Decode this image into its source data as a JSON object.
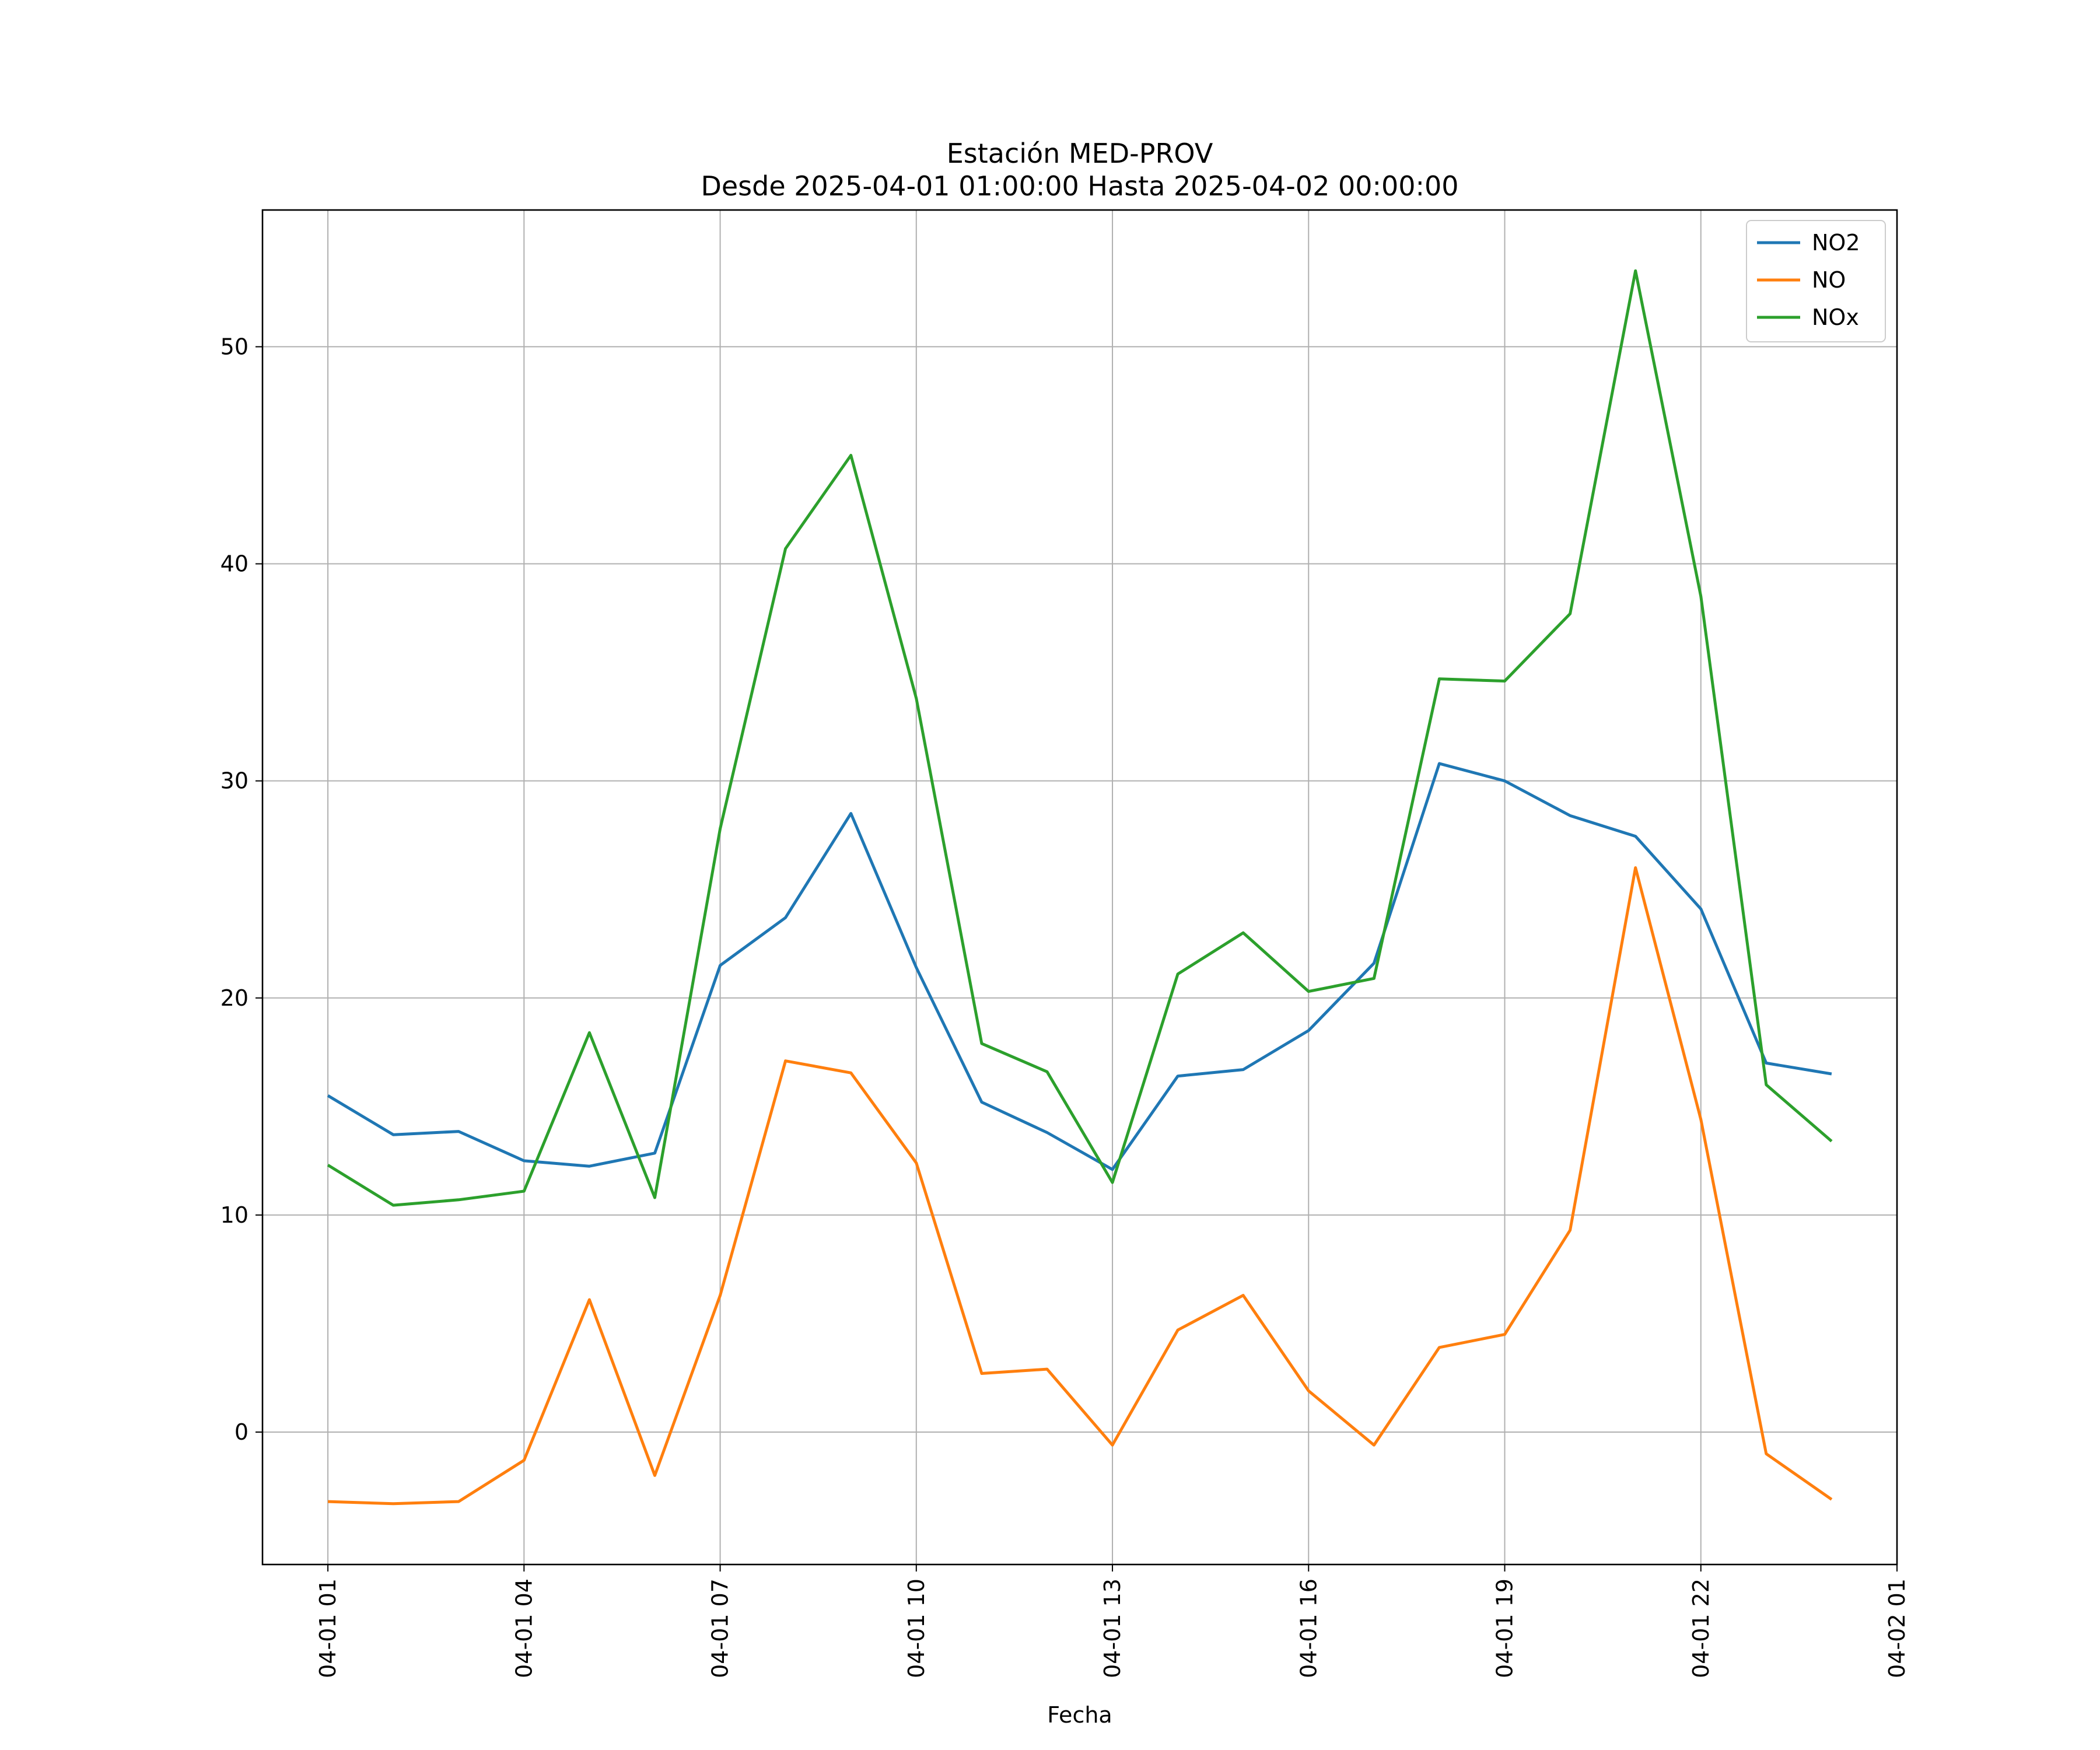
{
  "chart_data": {
    "type": "line",
    "title": "Estación MED-PROV",
    "subtitle": "Desde 2025-04-01 01:00:00 Hasta 2025-04-02 00:00:00",
    "xlabel": "Fecha",
    "ylabel": "",
    "x": [
      "2025-04-01 01:00",
      "2025-04-01 02:00",
      "2025-04-01 03:00",
      "2025-04-01 04:00",
      "2025-04-01 05:00",
      "2025-04-01 06:00",
      "2025-04-01 07:00",
      "2025-04-01 08:00",
      "2025-04-01 09:00",
      "2025-04-01 10:00",
      "2025-04-01 11:00",
      "2025-04-01 12:00",
      "2025-04-01 13:00",
      "2025-04-01 14:00",
      "2025-04-01 15:00",
      "2025-04-01 16:00",
      "2025-04-01 17:00",
      "2025-04-01 18:00",
      "2025-04-01 19:00",
      "2025-04-01 20:00",
      "2025-04-01 21:00",
      "2025-04-01 22:00",
      "2025-04-01 23:00",
      "2025-04-02 00:00"
    ],
    "xlim": [
      "2025-04-01 00:00",
      "2025-04-02 01:00"
    ],
    "x_ticks": [
      "2025-04-01 01:00",
      "2025-04-01 04:00",
      "2025-04-01 07:00",
      "2025-04-01 10:00",
      "2025-04-01 13:00",
      "2025-04-01 16:00",
      "2025-04-01 19:00",
      "2025-04-01 22:00",
      "2025-04-02 01:00"
    ],
    "x_tick_labels": [
      "04-01 01",
      "04-01 04",
      "04-01 07",
      "04-01 10",
      "04-01 13",
      "04-01 16",
      "04-01 19",
      "04-01 22",
      "04-02 01"
    ],
    "ylim": [
      -6.1,
      56.3
    ],
    "y_ticks": [
      0,
      10,
      20,
      30,
      40,
      50
    ],
    "y_tick_labels": [
      "0",
      "10",
      "20",
      "30",
      "40",
      "50"
    ],
    "grid": true,
    "legend_position": "top-right",
    "series": [
      {
        "name": "NO2",
        "color": "#1f77b4",
        "values": [
          15.5,
          13.7,
          13.85,
          12.5,
          12.25,
          12.85,
          21.5,
          23.7,
          28.5,
          21.4,
          15.2,
          13.8,
          12.1,
          16.4,
          16.7,
          18.5,
          21.6,
          30.8,
          30.0,
          28.4,
          27.45,
          24.1,
          17.0,
          16.5
        ]
      },
      {
        "name": "NO",
        "color": "#ff7f0e",
        "values": [
          -3.2,
          -3.3,
          -3.2,
          -1.3,
          6.1,
          -2.0,
          6.3,
          17.1,
          16.55,
          12.4,
          2.7,
          2.9,
          -0.6,
          4.7,
          6.3,
          1.9,
          -0.6,
          3.9,
          4.5,
          9.3,
          26.0,
          14.4,
          -1.0,
          -3.1
        ]
      },
      {
        "name": "NOx",
        "color": "#2ca02c",
        "values": [
          12.3,
          10.45,
          10.7,
          11.1,
          18.4,
          10.8,
          27.8,
          40.7,
          45.0,
          33.8,
          17.9,
          16.6,
          11.5,
          21.1,
          23.0,
          20.3,
          20.9,
          34.7,
          34.6,
          37.7,
          53.5,
          38.5,
          16.0,
          13.4
        ]
      }
    ]
  }
}
